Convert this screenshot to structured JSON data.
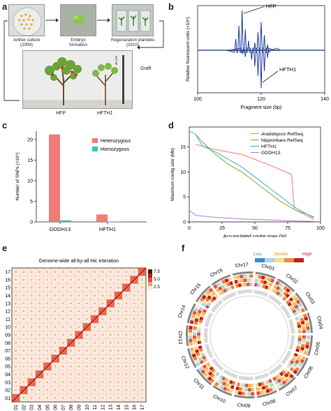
{
  "panels": {
    "a": {
      "letter": "a",
      "steps": [
        {
          "label": "Anther culture",
          "sub": "(2009)"
        },
        {
          "label": "Embryo",
          "sub": "formation"
        },
        {
          "label": "Regenaration plantlets",
          "sub": "(2010)"
        }
      ],
      "graft_label": "Graft",
      "scale_label": "40 CM",
      "tree_labels": [
        "HFP",
        "HFTH1"
      ]
    },
    "b": {
      "letter": "b",
      "ylabel": "Relative fluorescent units (×10⁴)",
      "xlabel": "Fragment size (bp)",
      "xticks": [
        "100",
        "120",
        "140"
      ],
      "annotations": [
        "HFP",
        "HFTH1"
      ],
      "line_color": "#1f3fa0"
    },
    "c": {
      "letter": "c",
      "ylabel": "Number of SNPs (×10⁶)",
      "yticks": [
        "0",
        "5",
        "10",
        "15",
        "20"
      ],
      "legend": [
        "Heterozygous",
        "Homozygous"
      ],
      "colors": [
        "#f07c78",
        "#35c4c4"
      ]
    },
    "d": {
      "letter": "d",
      "ylabel": "Maximum contig size (Mb)",
      "xlabel": "Accumulated contig span (%)",
      "xticks": [
        "0",
        "25",
        "50",
        "75",
        "100"
      ],
      "yticks": [
        "0",
        "5",
        "10",
        "15"
      ],
      "legend": [
        {
          "italic": "Arabidopsis",
          "rest": " RefSeq"
        },
        {
          "italic": "",
          "rest": "Nipponbare RefSeq"
        },
        {
          "italic": "",
          "rest": "HFTH1"
        },
        {
          "italic": "",
          "rest": "GDDH13"
        }
      ],
      "colors": [
        "#f07c78",
        "#7fae2e",
        "#35b4d4",
        "#b07cd8"
      ]
    },
    "e": {
      "letter": "e",
      "title": "Genome-wide all-by-all Hic interation",
      "chrom_labels": [
        "01",
        "02",
        "03",
        "04",
        "05",
        "06",
        "07",
        "08",
        "09",
        "10",
        "11",
        "12",
        "13",
        "14",
        "15",
        "16",
        "17"
      ],
      "scale_ticks": [
        "7.5",
        "5.0",
        "2.5"
      ]
    },
    "f": {
      "letter": "f",
      "legend_labels": [
        "Low",
        "Middle",
        "High"
      ],
      "chromosomes": [
        "Chr01",
        "Chr02",
        "Chr03",
        "Chr04",
        "Chr05",
        "Chr06",
        "Chr07",
        "Chr08",
        "Chr09",
        "Chr10",
        "Chr11",
        "Chr12",
        "Chr13",
        "Chr14",
        "Chr15",
        "Chr16",
        "Chr17"
      ]
    }
  },
  "chart_data": [
    {
      "type": "line",
      "panel": "b",
      "x_range": [
        100,
        140
      ],
      "series": [
        {
          "name": "HFP",
          "peaks_x": [
            112,
            113,
            114,
            115,
            116,
            118,
            119,
            120,
            121,
            122
          ],
          "peaks_y": [
            1.2,
            2.6,
            4.2,
            2.2,
            1.0,
            0.8,
            1.9,
            3.0,
            1.6,
            0.6
          ]
        },
        {
          "name": "HFTH1",
          "peaks_x": [
            114,
            115,
            117,
            118,
            119,
            120,
            121,
            122
          ],
          "peaks_y": [
            0.4,
            0.7,
            1.0,
            1.7,
            2.7,
            4.0,
            2.2,
            0.8
          ]
        }
      ]
    },
    {
      "type": "bar",
      "panel": "c",
      "categories": [
        "GDDH13",
        "HFTH1"
      ],
      "ylim": [
        0,
        22
      ],
      "series": [
        {
          "name": "Heterozygous",
          "values": [
            21.2,
            1.8
          ]
        },
        {
          "name": "Homozygous",
          "values": [
            0.4,
            0.1
          ]
        }
      ]
    },
    {
      "type": "line",
      "panel": "d",
      "xlim": [
        0,
        100
      ],
      "ylim": [
        0,
        19
      ],
      "series": [
        {
          "name": "Arabidopsis RefSeq",
          "x": [
            5,
            20,
            40,
            60,
            78,
            80,
            95
          ],
          "y": [
            15.5,
            14.5,
            13.5,
            11.5,
            9.5,
            2.5,
            0.5
          ]
        },
        {
          "name": "Nipponbare RefSeq",
          "x": [
            5,
            10,
            20,
            30,
            40,
            50,
            60,
            70,
            80,
            90,
            95
          ],
          "y": [
            17.5,
            16.0,
            13.5,
            11.5,
            10.0,
            8.0,
            6.0,
            4.0,
            2.5,
            1.5,
            1.0
          ]
        },
        {
          "name": "HFTH1",
          "x": [
            0,
            5,
            10,
            20,
            30,
            40,
            50,
            60,
            70,
            80,
            90,
            95
          ],
          "y": [
            18.2,
            17.5,
            15.2,
            14.0,
            12.5,
            11.0,
            9.0,
            7.0,
            5.0,
            3.0,
            1.5,
            0.8
          ]
        },
        {
          "name": "GDDH13",
          "x": [
            0,
            5,
            20,
            40,
            60,
            80,
            95
          ],
          "y": [
            2.3,
            1.3,
            0.9,
            0.6,
            0.4,
            0.2,
            0.1
          ]
        }
      ]
    }
  ]
}
